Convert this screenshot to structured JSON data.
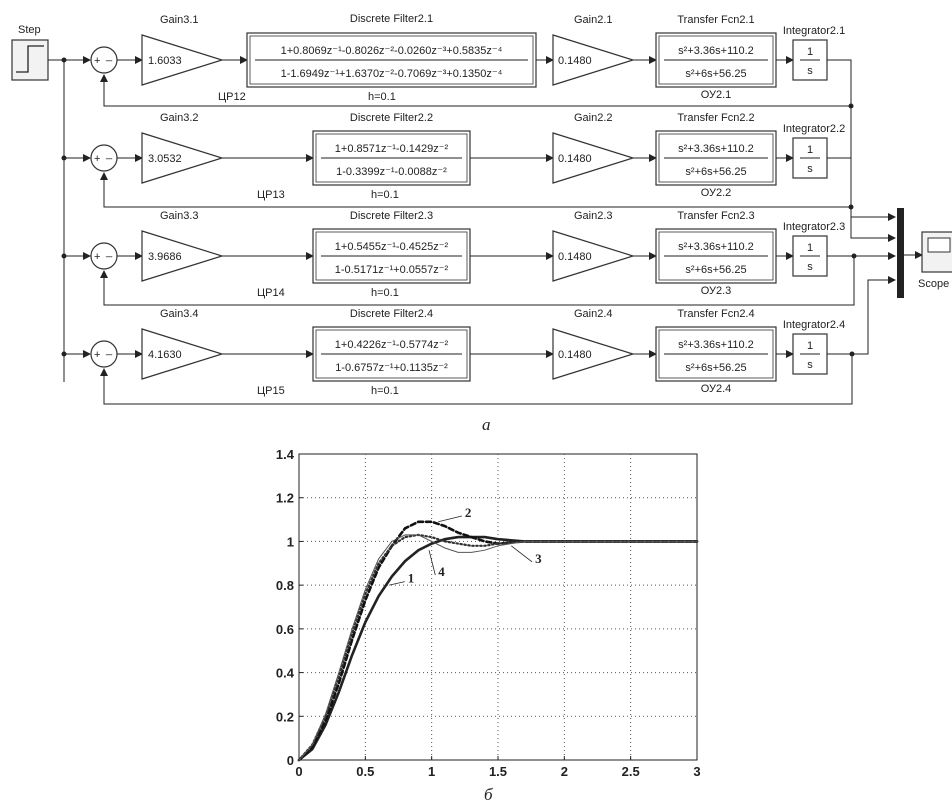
{
  "diagram": {
    "step_label": "Step",
    "scope_label": "Scope",
    "sum_signs": {
      "plus": "+",
      "minus": "_"
    },
    "integrator_num": "1",
    "integrator_den": "s",
    "h_label": "h=0.1",
    "rows": [
      {
        "gain3_name": "Gain3.1",
        "gain3_value": "1.6033",
        "filter_name": "Discrete Filter2.1",
        "filter_num": "1+0.8069z⁻¹-0.8026z⁻²-0.0260z⁻³+0.5835z⁻⁴",
        "filter_den": "1-1.6949z⁻¹+1.6370z⁻²-0.7069z⁻³+0.1350z⁻⁴",
        "controller_label": "ЦР12",
        "gain2_name": "Gain2.1",
        "gain2_value": "0.1480",
        "tf_name": "Transfer Fcn2.1",
        "tf_num": "s²+3.36s+110.2",
        "tf_den": "s²+6s+56.25",
        "plant_label": "ОУ2.1",
        "int_name": "Integrator2.1"
      },
      {
        "gain3_name": "Gain3.2",
        "gain3_value": "3.0532",
        "filter_name": "Discrete Filter2.2",
        "filter_num": "1+0.8571z⁻¹-0.1429z⁻²",
        "filter_den": "1-0.3399z⁻¹-0.0088z⁻²",
        "controller_label": "ЦР13",
        "gain2_name": "Gain2.2",
        "gain2_value": "0.1480",
        "tf_name": "Transfer Fcn2.2",
        "tf_num": "s²+3.36s+110.2",
        "tf_den": "s²+6s+56.25",
        "plant_label": "ОУ2.2",
        "int_name": "Integrator2.2"
      },
      {
        "gain3_name": "Gain3.3",
        "gain3_value": "3.9686",
        "filter_name": "Discrete Filter2.3",
        "filter_num": "1+0.5455z⁻¹-0.4525z⁻²",
        "filter_den": "1-0.5171z⁻¹+0.0557z⁻²",
        "controller_label": "ЦР14",
        "gain2_name": "Gain2.3",
        "gain2_value": "0.1480",
        "tf_name": "Transfer Fcn2.3",
        "tf_num": "s²+3.36s+110.2",
        "tf_den": "s²+6s+56.25",
        "plant_label": "ОУ2.3",
        "int_name": "Integrator2.3"
      },
      {
        "gain3_name": "Gain3.4",
        "gain3_value": "4.1630",
        "filter_name": "Discrete Filter2.4",
        "filter_num": "1+0.4226z⁻¹-0.5774z⁻²",
        "filter_den": "1-0.6757z⁻¹+0.1135z⁻²",
        "controller_label": "ЦР15",
        "gain2_name": "Gain2.4",
        "gain2_value": "0.1480",
        "tf_name": "Transfer Fcn2.4",
        "tf_num": "s²+3.36s+110.2",
        "tf_den": "s²+6s+56.25",
        "plant_label": "ОУ2.4",
        "int_name": "Integrator2.4"
      }
    ],
    "caption_a": "а",
    "caption_b": "б"
  },
  "chart_data": {
    "type": "line",
    "xlim": [
      0,
      3
    ],
    "ylim": [
      0,
      1.4
    ],
    "grid": true,
    "x_ticks": [
      "0",
      "0.5",
      "1",
      "1.5",
      "2",
      "2.5",
      "3"
    ],
    "y_ticks": [
      "0",
      "0.2",
      "0.4",
      "0.6",
      "0.8",
      "1",
      "1.2",
      "1.4"
    ],
    "annotations": [
      "1",
      "2",
      "3",
      "4"
    ],
    "series": [
      {
        "name": "1",
        "style": "solid-thick",
        "color": "#222222",
        "x": [
          0,
          0.1,
          0.2,
          0.3,
          0.4,
          0.5,
          0.6,
          0.7,
          0.8,
          0.9,
          1.0,
          1.1,
          1.2,
          1.3,
          1.4,
          1.5,
          1.7,
          2.0,
          2.5,
          3.0
        ],
        "y": [
          0,
          0.05,
          0.16,
          0.31,
          0.48,
          0.63,
          0.75,
          0.84,
          0.91,
          0.96,
          0.99,
          1.01,
          1.02,
          1.02,
          1.02,
          1.01,
          1.0,
          1.0,
          1.0,
          1.0
        ]
      },
      {
        "name": "2",
        "style": "dashed-thick",
        "color": "#111111",
        "x": [
          0,
          0.1,
          0.2,
          0.3,
          0.4,
          0.5,
          0.6,
          0.7,
          0.8,
          0.9,
          1.0,
          1.1,
          1.2,
          1.3,
          1.4,
          1.5,
          1.7,
          2.0,
          2.5,
          3.0
        ],
        "y": [
          0,
          0.06,
          0.18,
          0.35,
          0.55,
          0.73,
          0.88,
          0.98,
          1.06,
          1.09,
          1.09,
          1.07,
          1.04,
          1.02,
          1.0,
          0.99,
          1.0,
          1.0,
          1.0,
          1.0
        ]
      },
      {
        "name": "3",
        "style": "dotted",
        "color": "#333333",
        "x": [
          0,
          0.1,
          0.2,
          0.3,
          0.4,
          0.5,
          0.6,
          0.7,
          0.8,
          0.9,
          1.0,
          1.1,
          1.2,
          1.3,
          1.4,
          1.5,
          1.7,
          2.0,
          2.5,
          3.0
        ],
        "y": [
          0,
          0.07,
          0.2,
          0.38,
          0.58,
          0.76,
          0.9,
          0.98,
          1.02,
          1.03,
          1.02,
          1.0,
          0.99,
          0.98,
          0.98,
          0.99,
          1.0,
          1.0,
          1.0,
          1.0
        ]
      },
      {
        "name": "4",
        "style": "thin",
        "color": "#555555",
        "x": [
          0,
          0.1,
          0.2,
          0.3,
          0.4,
          0.5,
          0.6,
          0.7,
          0.8,
          0.9,
          1.0,
          1.1,
          1.2,
          1.3,
          1.4,
          1.5,
          1.7,
          2.0,
          2.5,
          3.0
        ],
        "y": [
          0,
          0.07,
          0.21,
          0.4,
          0.6,
          0.78,
          0.92,
          1.0,
          1.03,
          1.03,
          1.0,
          0.97,
          0.95,
          0.95,
          0.96,
          0.98,
          1.0,
          1.0,
          1.0,
          1.0
        ]
      }
    ]
  }
}
